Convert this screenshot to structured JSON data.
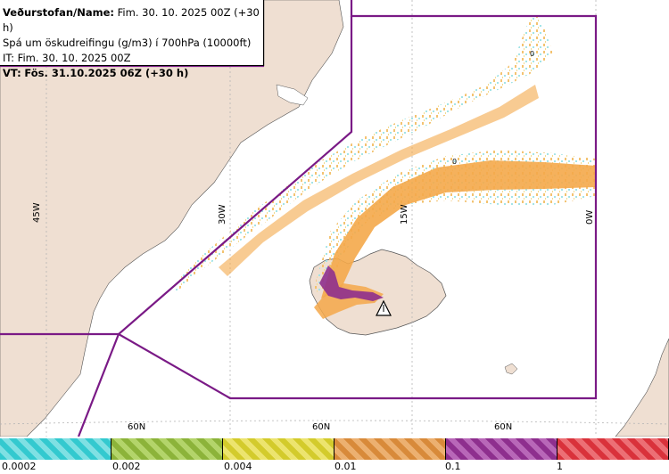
{
  "header": {
    "line1_label": "Veðurstofan/Name:",
    "line1_value": "Fim. 30. 10. 2025 00Z (+30 h)",
    "line2": "Spá um öskudreifingu (g/m3) í 700hPa (10000ft)",
    "line3": "IT: Fim. 30. 10. 2025 00Z",
    "line4_label": "VT:",
    "line4_value": "Fös. 31.10.2025 06Z (+30 h)"
  },
  "map": {
    "longitude_labels": [
      "45W",
      "30W",
      "15W",
      "0W"
    ],
    "latitude_labels": [
      "60N",
      "60N",
      "60N"
    ],
    "contour_labels": [
      "0",
      "0"
    ],
    "colors": {
      "land": "#efdfd2",
      "sea": "#ffffff",
      "boundary": "#7a1a86",
      "grid": "#b5b5b5"
    },
    "volcano_icon": "warning-triangle-icon"
  },
  "legend": {
    "labels": [
      "0.0002",
      "0.002",
      "0.004",
      "0.01",
      "0.1",
      "1"
    ],
    "colors": [
      "#33c9cf",
      "#8cb33a",
      "#d3cb2c",
      "#d88a3a",
      "#8e2f8e",
      "#d9323b"
    ]
  }
}
